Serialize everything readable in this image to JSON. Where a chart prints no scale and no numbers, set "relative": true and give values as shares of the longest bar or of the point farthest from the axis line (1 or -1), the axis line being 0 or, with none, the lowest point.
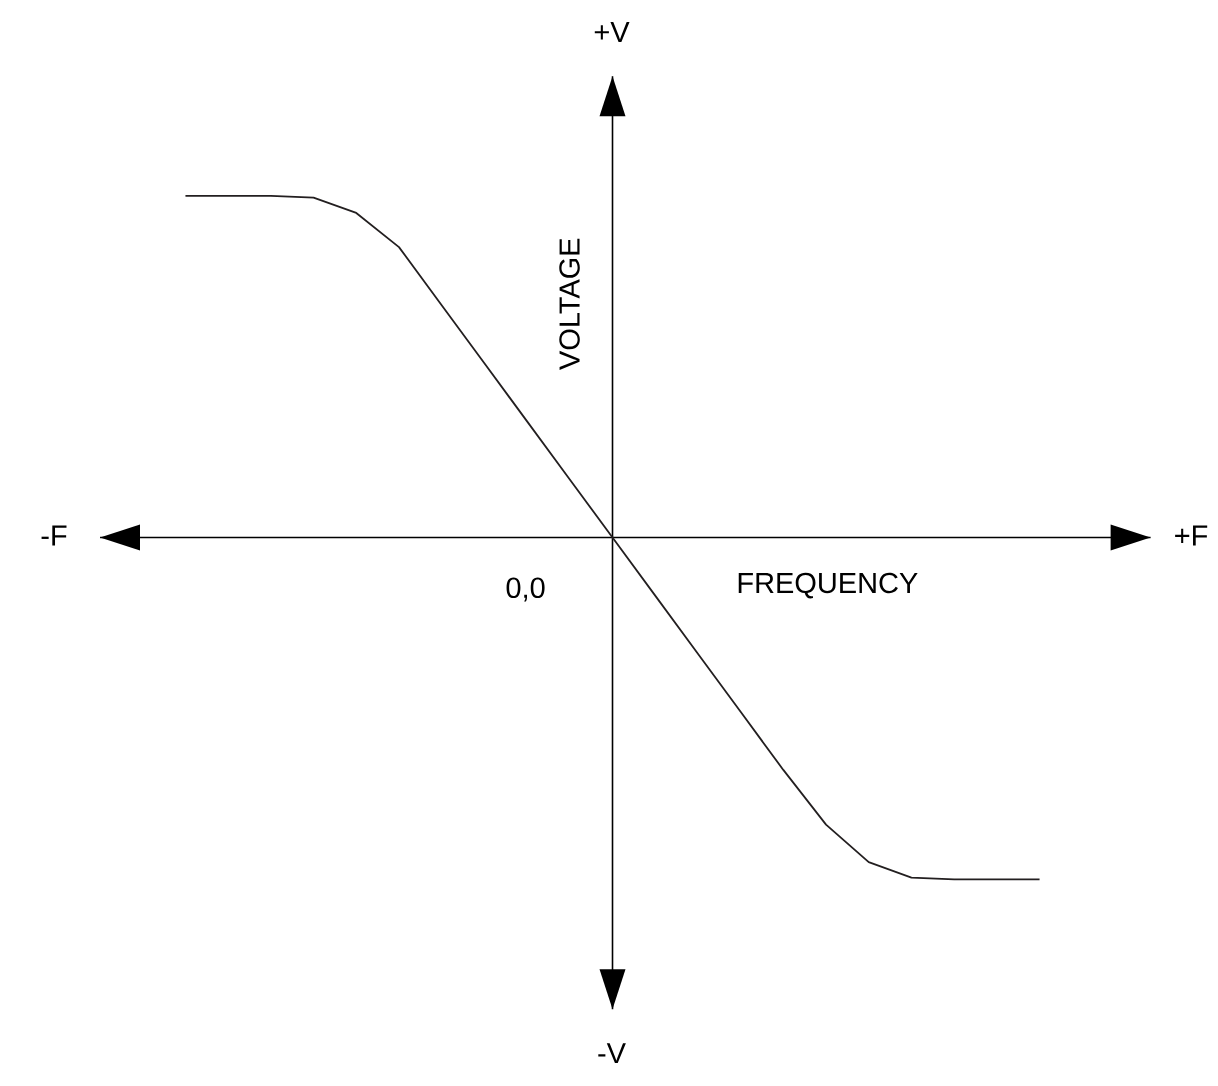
{
  "chart_data": {
    "type": "line",
    "relative": true,
    "marker": "none",
    "line_style": "solid",
    "color": "#231f20",
    "xlabel": "FREQUENCY",
    "ylabel": "VOLTAGE",
    "annotations": [
      "+V",
      "-F",
      "+F",
      "0,0",
      "-V"
    ],
    "categories": [
      null,
      null,
      null,
      null,
      null,
      null,
      null,
      null,
      null,
      null,
      null,
      null,
      null,
      null,
      null,
      null,
      null,
      null,
      null,
      null,
      null
    ],
    "values": [
      1.0,
      1.0,
      1.0,
      0.995,
      0.95,
      0.85,
      0.68,
      0.51,
      0.34,
      0.17,
      0,
      -0.17,
      -0.34,
      -0.51,
      -0.68,
      -0.84,
      -0.95,
      -0.995,
      -1.0,
      -1.0,
      -1.0
    ]
  }
}
